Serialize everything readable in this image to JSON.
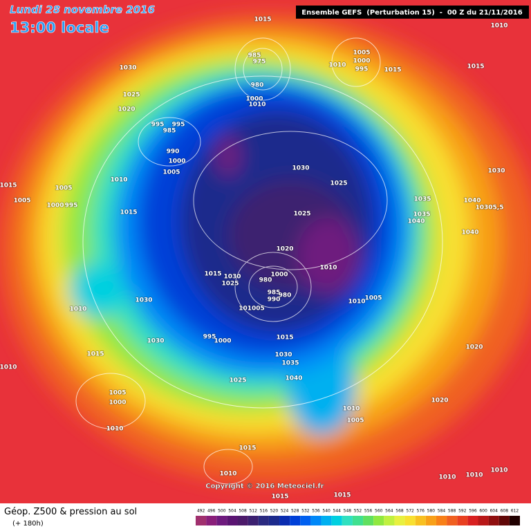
{
  "header": {
    "date": "Lundi 28 novembre 2016",
    "time": "13:00 locale",
    "run": "Ensemble GEFS  (Perturbation 15)  -  00 Z du 21/11/2016"
  },
  "footer": {
    "title": "Géop. Z500 & pression au sol",
    "lead": "(+ 180h)",
    "copyright": "Copyright © 2016 Meteociel.fr"
  },
  "legend": {
    "values": [
      492,
      496,
      500,
      504,
      508,
      512,
      516,
      520,
      524,
      528,
      532,
      536,
      540,
      544,
      548,
      552,
      556,
      560,
      564,
      568,
      572,
      576,
      580,
      584,
      588,
      592,
      596,
      600,
      604,
      608,
      612
    ],
    "colors": [
      "#a0306e",
      "#8a1f7a",
      "#6e1a7e",
      "#5a1472",
      "#4c1a6a",
      "#3c2070",
      "#2a2a80",
      "#1c2a8c",
      "#0a2cb0",
      "#0040d8",
      "#0060f0",
      "#0088f8",
      "#00b0f0",
      "#00d0e0",
      "#30e0c0",
      "#40e090",
      "#60e060",
      "#90e840",
      "#c0f040",
      "#e8f040",
      "#f8e030",
      "#f8c020",
      "#f8a018",
      "#f88018",
      "#f06020",
      "#e84020",
      "#d82020",
      "#b81818",
      "#901010",
      "#600808",
      "#200000"
    ]
  },
  "pressure_labels": [
    "1015",
    "1010",
    "1030",
    "1025",
    "1020",
    "985",
    "975",
    "1005",
    "1000",
    "995",
    "1010",
    "1015",
    "1015",
    "980",
    "1000",
    "1010",
    "995",
    "995",
    "985",
    "990",
    "1000",
    "1005",
    "1030",
    "1025",
    "1010",
    "1015",
    "1005",
    "1005",
    "1000",
    "995",
    "1035",
    "1030",
    "1040",
    "10305,5",
    "1025",
    "1040",
    "1035",
    "1040",
    "1015",
    "1020",
    "1010",
    "1015",
    "1030",
    "1000",
    "1025",
    "980",
    "985",
    "980",
    "990",
    "1005",
    "1010",
    "101005",
    "1030",
    "1010",
    "1030",
    "995",
    "1000",
    "1015",
    "1015",
    "1030",
    "1035",
    "1040",
    "1025",
    "1010",
    "1005",
    "1000",
    "1020",
    "1020",
    "1010",
    "1005",
    "1010",
    "1015",
    "1010",
    "1010",
    "1010",
    "1010",
    "1015",
    "1015"
  ]
}
